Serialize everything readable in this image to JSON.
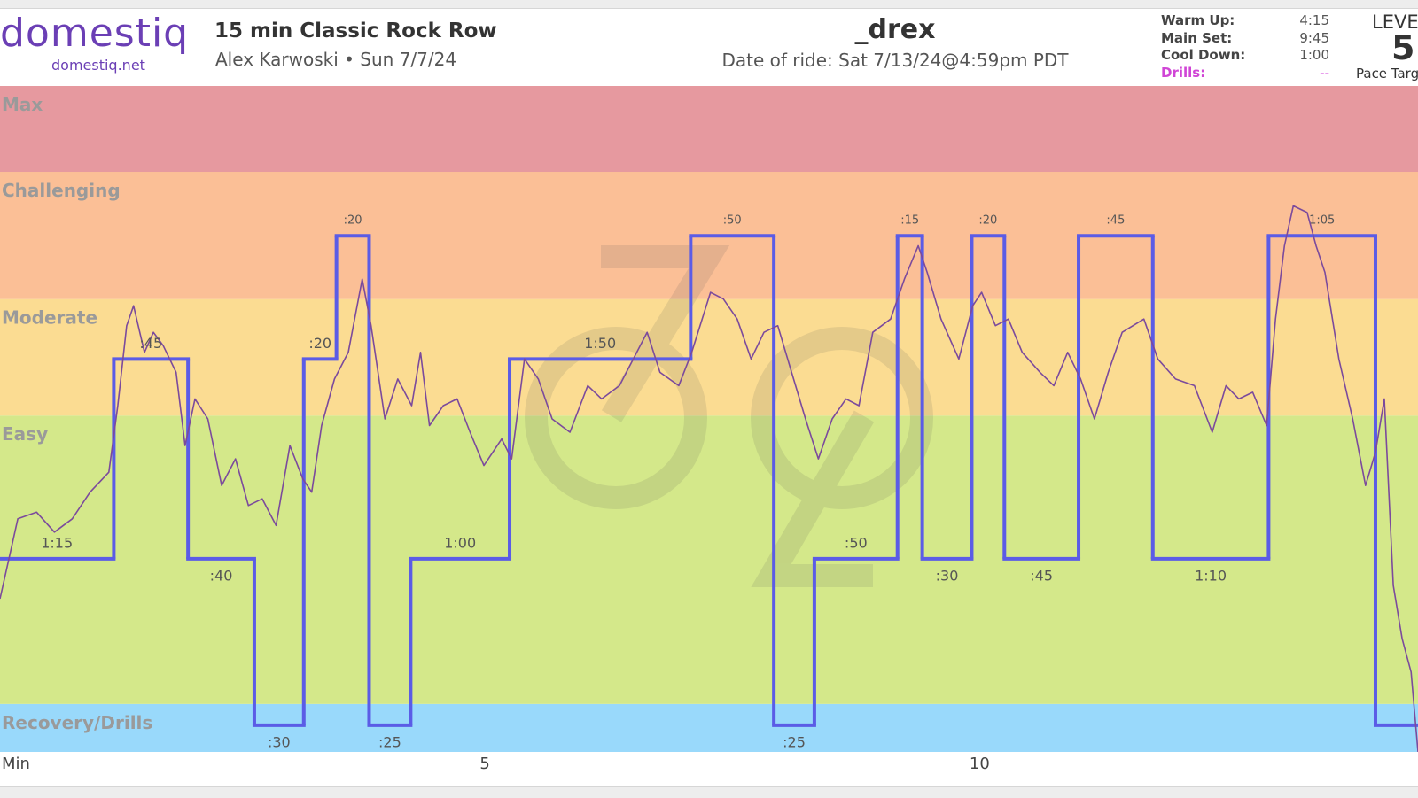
{
  "header": {
    "logo": "domestiq",
    "site": "domestiq.net",
    "title": "15 min Classic Rock Row",
    "subtitle": "Alex Karwoski • Sun 7/7/24",
    "rider": "_drex",
    "ride_date": "Date of ride: Sat 7/13/24@4:59pm PDT",
    "summary": [
      {
        "label": "Warm Up:",
        "value": "4:15"
      },
      {
        "label": "Main Set:",
        "value": "9:45"
      },
      {
        "label": "Cool Down:",
        "value": "1:00"
      },
      {
        "label": "Drills:",
        "value": "--"
      }
    ],
    "level_label": "LEVEL",
    "level": "5",
    "level_caption": "Pace Target"
  },
  "chart_data": {
    "type": "workout",
    "xlim": [
      0.1,
      14.43
    ],
    "ylim": [
      0,
      100
    ],
    "xticks": [
      {
        "value": 0,
        "label": "Min"
      },
      5,
      10
    ],
    "zones": [
      {
        "name": "Recovery/Drills",
        "range": [
          0,
          7.2
        ],
        "color": "#99d9fb"
      },
      {
        "name": "Easy",
        "range": [
          7.2,
          50.5
        ],
        "color": "#d4e88a"
      },
      {
        "name": "Moderate",
        "range": [
          50.5,
          68
        ],
        "color": "#fbdc92"
      },
      {
        "name": "Challenging",
        "range": [
          68,
          87.1
        ],
        "color": "#fbbf96"
      },
      {
        "name": "Max",
        "range": [
          87.1,
          100
        ],
        "color": "#e6999f"
      }
    ],
    "steps": {
      "color": "#5b5ce6",
      "edges": [
        0,
        1.25,
        2,
        2.67,
        3.17,
        3.5,
        3.83,
        4.25,
        5.25,
        7.08,
        7.92,
        8.33,
        9.17,
        9.42,
        9.92,
        10.25,
        11,
        11.75,
        12.92,
        14,
        14.5
      ],
      "levels": [
        29,
        59,
        29,
        4,
        59,
        77.5,
        4,
        29,
        59,
        77.5,
        4,
        29,
        77.5,
        29,
        77.5,
        29,
        77.5,
        29,
        77.5,
        4
      ],
      "labels": [
        "1:15",
        ":45",
        ":40",
        ":30",
        ":20",
        ":20",
        ":25",
        "1:00",
        "1:50",
        ":50",
        ":25",
        ":50",
        ":15",
        ":30",
        ":20",
        ":45",
        ":45",
        "1:10",
        "1:05",
        null
      ]
    },
    "pace": {
      "color": "#7b4a9c",
      "x": [
        0.1,
        0.28,
        0.47,
        0.65,
        0.83,
        1.01,
        1.2,
        1.29,
        1.38,
        1.45,
        1.56,
        1.65,
        1.75,
        1.88,
        1.97,
        2.07,
        2.2,
        2.34,
        2.48,
        2.61,
        2.75,
        2.89,
        3.03,
        3.16,
        3.25,
        3.35,
        3.48,
        3.62,
        3.76,
        3.85,
        3.99,
        4.12,
        4.26,
        4.35,
        4.44,
        4.58,
        4.72,
        4.85,
        4.99,
        5.17,
        5.27,
        5.4,
        5.54,
        5.68,
        5.86,
        6.04,
        6.18,
        6.36,
        6.5,
        6.64,
        6.77,
        6.96,
        7.09,
        7.28,
        7.41,
        7.55,
        7.69,
        7.82,
        7.96,
        8.1,
        8.24,
        8.37,
        8.51,
        8.65,
        8.78,
        8.92,
        9.1,
        9.24,
        9.38,
        9.47,
        9.61,
        9.79,
        9.93,
        10.02,
        10.16,
        10.29,
        10.43,
        10.61,
        10.75,
        10.89,
        11.02,
        11.16,
        11.3,
        11.44,
        11.66,
        11.8,
        11.98,
        12.17,
        12.35,
        12.49,
        12.62,
        12.76,
        12.9,
        12.99,
        13.08,
        13.17,
        13.31,
        13.4,
        13.49,
        13.63,
        13.77,
        13.9,
        14.0,
        14.09,
        14.18,
        14.27,
        14.36,
        14.43
      ],
      "values": [
        23,
        35,
        36,
        33,
        35,
        39,
        42,
        52,
        64,
        67,
        60,
        63,
        61,
        57,
        46,
        53,
        50,
        40,
        44,
        37,
        38,
        34,
        46,
        41,
        39,
        49,
        56,
        60,
        71,
        64,
        50,
        56,
        52,
        60,
        49,
        52,
        53,
        48,
        43,
        47,
        44,
        59,
        56,
        50,
        48,
        55,
        53,
        55,
        59,
        63,
        57,
        55,
        60,
        69,
        68,
        65,
        59,
        63,
        64,
        57,
        50,
        44,
        50,
        53,
        52,
        63,
        65,
        71,
        76,
        72,
        65,
        59,
        67,
        69,
        64,
        65,
        60,
        57,
        55,
        60,
        56,
        50,
        57,
        63,
        65,
        59,
        56,
        55,
        48,
        55,
        53,
        54,
        49,
        65,
        76,
        82,
        81,
        76,
        72,
        59,
        50,
        40,
        45,
        53,
        25,
        17,
        12,
        0
      ]
    }
  }
}
